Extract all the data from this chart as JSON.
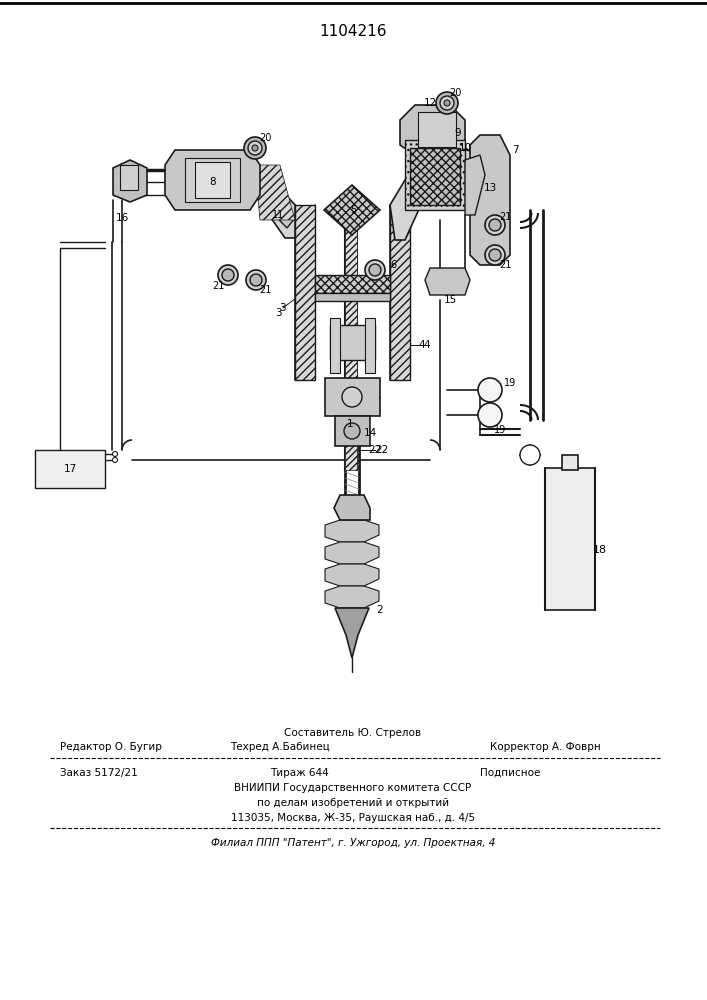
{
  "patent_number": "1104216",
  "footer": {
    "composer_label": "Составитель Ю. Стрелов",
    "editor_label": "Редактор О. Бугир",
    "techred_label": "Техред А.Бабинец",
    "corrector_label": "Корректор А. Фоврн",
    "order_label": "Заказ 5172/21",
    "tirazh_label": "Тираж 644",
    "podpisnoe_label": "Подписное",
    "vniipи_label": "ВНИИПИ Государственного комитета СССР",
    "po_delam_label": "по делам изобретений и открытий",
    "address_label": "113035, Москва, Ж-35, Раушская наб., д. 4/5",
    "filial_label": "Филиал ППП \"Патент\", г. Ужгород, ул. Проектная, 4"
  },
  "bg_color": "#ffffff",
  "dc": "#1a1a1a"
}
